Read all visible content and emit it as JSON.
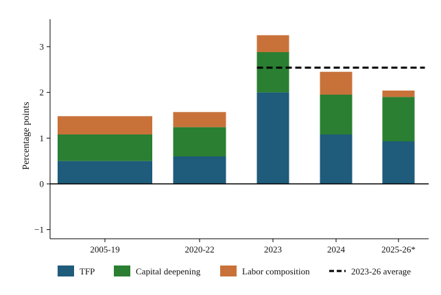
{
  "chart_data": {
    "type": "bar",
    "stacked": true,
    "categories": [
      "2005-19",
      "2020-22",
      "2023",
      "2024",
      "2025-26*"
    ],
    "series": [
      {
        "name": "TFP",
        "color": "#1f5b7a",
        "values": [
          0.5,
          0.6,
          2.0,
          1.08,
          0.93
        ]
      },
      {
        "name": "Capital deepening",
        "color": "#2a7f32",
        "values": [
          0.58,
          0.64,
          0.88,
          0.87,
          0.97
        ]
      },
      {
        "name": "Labor composition",
        "color": "#c8723a",
        "values": [
          0.4,
          0.33,
          0.37,
          0.5,
          0.14
        ]
      }
    ],
    "reference_line": {
      "name": "2023-26 average",
      "value": 2.54,
      "from_category": "2023",
      "to_category": "2025-26*",
      "style": "dashed",
      "color": "#000000"
    },
    "ylabel": "Percentage points",
    "xlabel": "",
    "title": "",
    "ylim": [
      -1.2,
      3.6
    ],
    "yticks": [
      -1,
      0,
      1,
      2,
      3
    ],
    "grid": false,
    "legend_position": "bottom"
  }
}
